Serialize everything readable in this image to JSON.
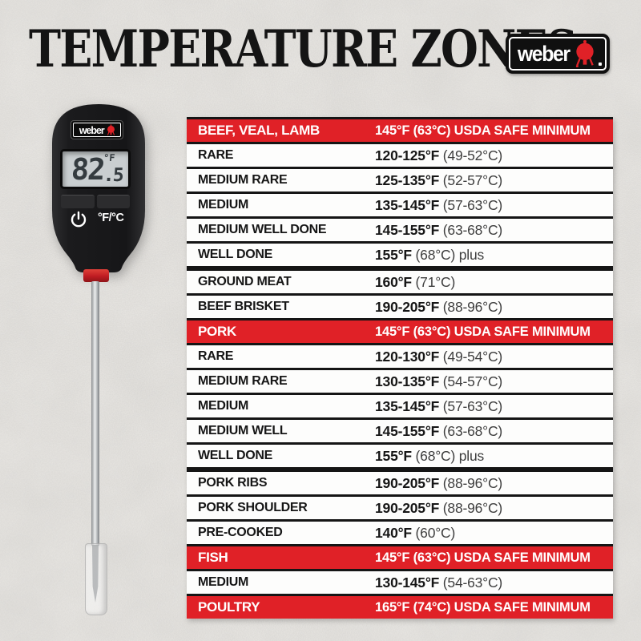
{
  "header": {
    "title": "TEMPERATURE ZONES",
    "logo_text": "weber"
  },
  "thermometer": {
    "brand": "weber",
    "display": {
      "value": "82",
      "decimal": ".5",
      "unit": "°F"
    },
    "unit_toggle_label": "°F/°C"
  },
  "colors": {
    "accent_red": "#e02127",
    "black": "#151515",
    "lcd": "#c9ced0"
  },
  "table": {
    "rows": [
      {
        "type": "header",
        "label": "BEEF, VEAL, LAMB",
        "temp_f": "145°F",
        "temp_c": "(63°C)",
        "note": "USDA SAFE MINIMUM"
      },
      {
        "type": "row",
        "label": "RARE",
        "temp_f": "120-125°F",
        "temp_c": "(49-52°C)"
      },
      {
        "type": "row",
        "label": "MEDIUM RARE",
        "temp_f": "125-135°F",
        "temp_c": "(52-57°C)"
      },
      {
        "type": "row",
        "label": "MEDIUM",
        "temp_f": "135-145°F",
        "temp_c": "(57-63°C)"
      },
      {
        "type": "row",
        "label": "MEDIUM WELL DONE",
        "temp_f": "145-155°F",
        "temp_c": "(63-68°C)"
      },
      {
        "type": "row",
        "label": "WELL DONE",
        "temp_f": "155°F",
        "temp_c": "(68°C) plus"
      },
      {
        "type": "row",
        "label": "GROUND MEAT",
        "temp_f": "160°F",
        "temp_c": "(71°C)",
        "divider": "thick"
      },
      {
        "type": "row",
        "label": "BEEF BRISKET",
        "temp_f": "190-205°F",
        "temp_c": "(88-96°C)"
      },
      {
        "type": "header",
        "label": "PORK",
        "temp_f": "145°F",
        "temp_c": "(63°C)",
        "note": "USDA SAFE MINIMUM"
      },
      {
        "type": "row",
        "label": "RARE",
        "temp_f": "120-130°F",
        "temp_c": "(49-54°C)"
      },
      {
        "type": "row",
        "label": "MEDIUM RARE",
        "temp_f": "130-135°F",
        "temp_c": "(54-57°C)"
      },
      {
        "type": "row",
        "label": "MEDIUM",
        "temp_f": "135-145°F",
        "temp_c": "(57-63°C)"
      },
      {
        "type": "row",
        "label": "MEDIUM WELL",
        "temp_f": "145-155°F",
        "temp_c": "(63-68°C)"
      },
      {
        "type": "row",
        "label": "WELL DONE",
        "temp_f": "155°F",
        "temp_c": "(68°C) plus"
      },
      {
        "type": "row",
        "label": "PORK RIBS",
        "temp_f": "190-205°F",
        "temp_c": "(88-96°C)",
        "divider": "thick"
      },
      {
        "type": "row",
        "label": "PORK SHOULDER",
        "temp_f": "190-205°F",
        "temp_c": "(88-96°C)"
      },
      {
        "type": "row",
        "label": "PRE-COOKED",
        "temp_f": "140°F",
        "temp_c": "(60°C)"
      },
      {
        "type": "header",
        "label": "FISH",
        "temp_f": "145°F",
        "temp_c": "(63°C)",
        "note": "USDA SAFE MINIMUM"
      },
      {
        "type": "row",
        "label": "MEDIUM",
        "temp_f": "130-145°F",
        "temp_c": "(54-63°C)"
      },
      {
        "type": "header",
        "label": "POULTRY",
        "temp_f": "165°F",
        "temp_c": "(74°C)",
        "note": "USDA SAFE MINIMUM"
      }
    ]
  }
}
